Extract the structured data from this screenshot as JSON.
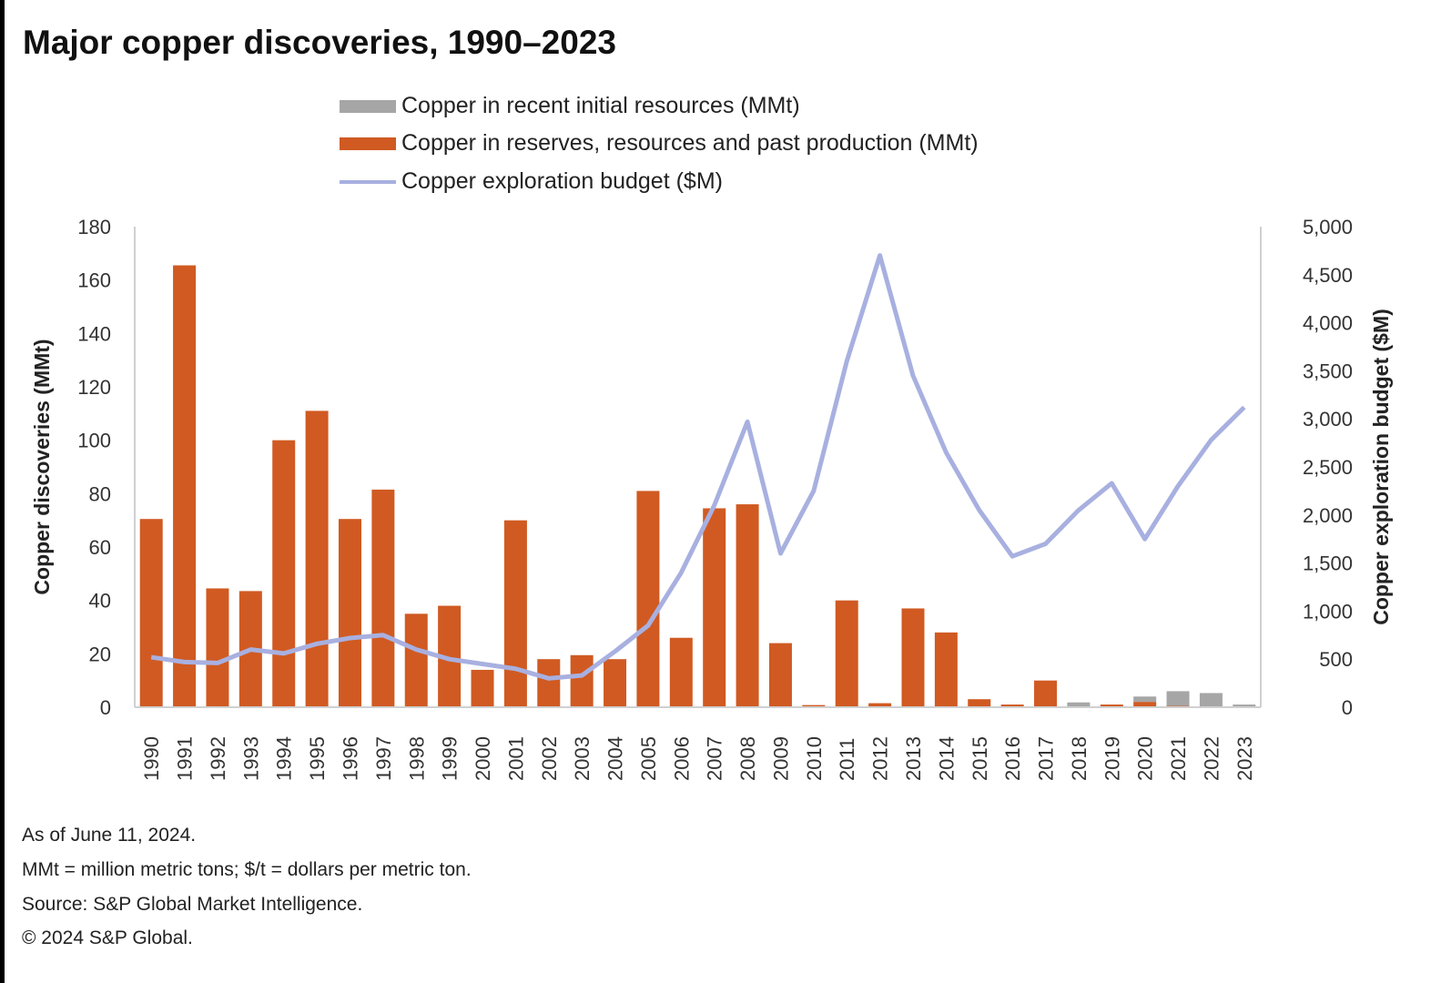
{
  "title": "Major copper discoveries, 1990–2023",
  "notes": [
    "As of June 11, 2024.",
    "MMt = million metric tons; $/t = dollars per metric ton.",
    "Source: S&P Global Market Intelligence.",
    "© 2024 S&P Global."
  ],
  "chart_data": {
    "type": "bar",
    "title": "Major copper discoveries, 1990–2023",
    "categories": [
      "1990",
      "1991",
      "1992",
      "1993",
      "1994",
      "1995",
      "1996",
      "1997",
      "1998",
      "1999",
      "2000",
      "2001",
      "2002",
      "2003",
      "2004",
      "2005",
      "2006",
      "2007",
      "2008",
      "2009",
      "2010",
      "2011",
      "2012",
      "2013",
      "2014",
      "2015",
      "2016",
      "2017",
      "2018",
      "2019",
      "2020",
      "2021",
      "2022",
      "2023"
    ],
    "series": [
      {
        "name": "Copper in recent initial resources (MMt)",
        "type": "stacked-bar",
        "axis": "left",
        "color": "#a6a6a6",
        "values": [
          0,
          0,
          0,
          0,
          0,
          0,
          0,
          0,
          0,
          0,
          0,
          0,
          0,
          0,
          0,
          0,
          0,
          0,
          0,
          0,
          0,
          0,
          0,
          0,
          0,
          0,
          0,
          0,
          1.5,
          0,
          2,
          5.5,
          5,
          1
        ]
      },
      {
        "name": "Copper in reserves, resources and past production (MMt)",
        "type": "stacked-bar",
        "axis": "left",
        "color": "#d05a22",
        "values": [
          70.5,
          165.5,
          44.5,
          43.5,
          100,
          111,
          70.5,
          81.5,
          35,
          38,
          14,
          70,
          18,
          19.5,
          18,
          81,
          26,
          74.5,
          76,
          24,
          0.8,
          40,
          1.5,
          37,
          28,
          3,
          1,
          10,
          0.3,
          1,
          2,
          0.5,
          0.3,
          0
        ]
      },
      {
        "name": "Copper exploration budget ($M)",
        "type": "line",
        "axis": "right",
        "color": "#a8b0e0",
        "values": [
          520,
          470,
          460,
          600,
          560,
          660,
          720,
          750,
          600,
          500,
          450,
          400,
          300,
          330,
          580,
          850,
          1400,
          2100,
          2970,
          1600,
          2250,
          3600,
          4700,
          3450,
          2650,
          2050,
          1570,
          1700,
          2050,
          2330,
          1750,
          2300,
          2780,
          3120
        ]
      }
    ],
    "ylabel": "Copper discoveries (MMt)",
    "ylim": [
      0,
      180
    ],
    "yticks": [
      "0",
      "20",
      "40",
      "60",
      "80",
      "100",
      "120",
      "140",
      "160",
      "180"
    ],
    "y2label": "Copper exploration budget ($M)",
    "y2lim": [
      0,
      5000
    ],
    "y2ticks": [
      "0",
      "500",
      "1,000",
      "1,500",
      "2,000",
      "2,500",
      "3,000",
      "3,500",
      "4,000",
      "4,500",
      "5,000"
    ],
    "legend": "top",
    "grid": false
  }
}
